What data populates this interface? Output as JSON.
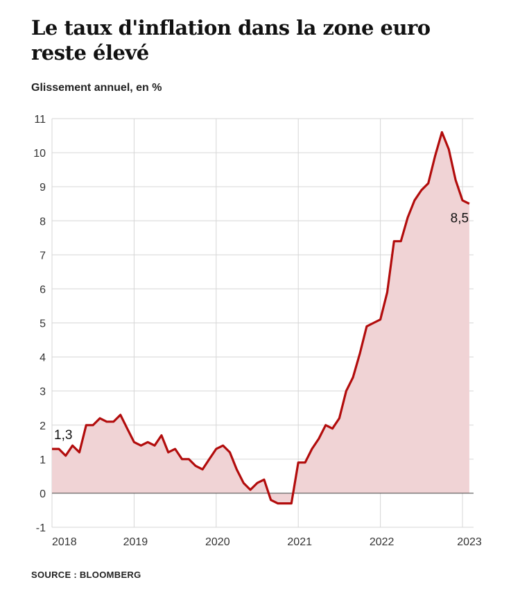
{
  "title": "Le taux d'inflation dans la zone euro reste élevé",
  "subtitle": "Glissement annuel, en %",
  "source": "SOURCE : BLOOMBERG",
  "colors": {
    "line": "#b20c0c",
    "area": "#f0d3d5",
    "grid": "#d6d6d6",
    "zero": "#555555"
  },
  "chart_data": {
    "type": "area",
    "x_start": "2018-01",
    "x_end": "2023-02",
    "frequency": "monthly",
    "x_ticks": [
      "2018",
      "2019",
      "2020",
      "2021",
      "2022",
      "2023"
    ],
    "y_ticks": [
      "11",
      "10",
      "9",
      "8",
      "7",
      "6",
      "5",
      "4",
      "3",
      "2",
      "1",
      "0",
      "-1"
    ],
    "ylim": [
      -1,
      11
    ],
    "grid": true,
    "values": [
      1.3,
      1.3,
      1.1,
      1.4,
      1.2,
      2.0,
      2.0,
      2.2,
      2.1,
      2.1,
      2.3,
      1.9,
      1.5,
      1.4,
      1.5,
      1.4,
      1.7,
      1.2,
      1.3,
      1.0,
      1.0,
      0.8,
      0.7,
      1.0,
      1.3,
      1.4,
      1.2,
      0.7,
      0.3,
      0.1,
      0.3,
      0.4,
      -0.2,
      -0.3,
      -0.3,
      -0.3,
      0.9,
      0.9,
      1.3,
      1.6,
      2.0,
      1.9,
      2.2,
      3.0,
      3.4,
      4.1,
      4.9,
      5.0,
      5.1,
      5.9,
      7.4,
      7.4,
      8.1,
      8.6,
      8.9,
      9.1,
      9.9,
      10.6,
      10.1,
      9.2,
      8.6,
      8.5
    ],
    "annotations": [
      {
        "index": 0,
        "label": "1,3"
      },
      {
        "index": 61,
        "label": "8,5"
      }
    ]
  }
}
